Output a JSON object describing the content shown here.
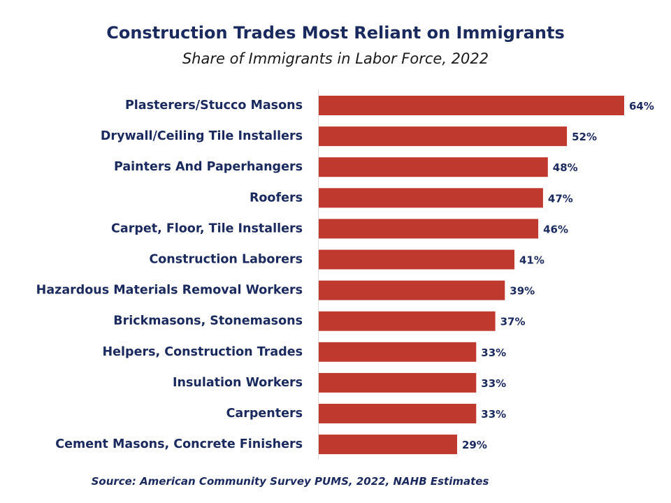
{
  "chart_data": {
    "type": "bar",
    "orientation": "horizontal",
    "title": "Construction Trades Most Reliant on Immigrants",
    "subtitle": "Share of Immigrants in Labor Force, 2022",
    "categories": [
      "Plasterers/Stucco Masons",
      "Drywall/Ceiling Tile Installers",
      "Painters And Paperhangers",
      "Roofers",
      "Carpet, Floor, Tile Installers",
      "Construction Laborers",
      "Hazardous Materials Removal Workers",
      "Brickmasons, Stonemasons",
      "Helpers, Construction Trades",
      "Insulation Workers",
      "Carpenters",
      "Cement Masons, Concrete Finishers"
    ],
    "values": [
      64,
      52,
      48,
      47,
      46,
      41,
      39,
      37,
      33,
      33,
      33,
      29
    ],
    "value_labels": [
      "64%",
      "52%",
      "48%",
      "47%",
      "46%",
      "41%",
      "39%",
      "37%",
      "33%",
      "33%",
      "33%",
      "29%"
    ],
    "unit": "%",
    "xlim": [
      0,
      64
    ],
    "bar_color": "#c0392f",
    "text_color": "#1a2a5e",
    "grid": false,
    "legend": "none",
    "source": "Source: American Community Survey PUMS, 2022, NAHB Estimates"
  }
}
